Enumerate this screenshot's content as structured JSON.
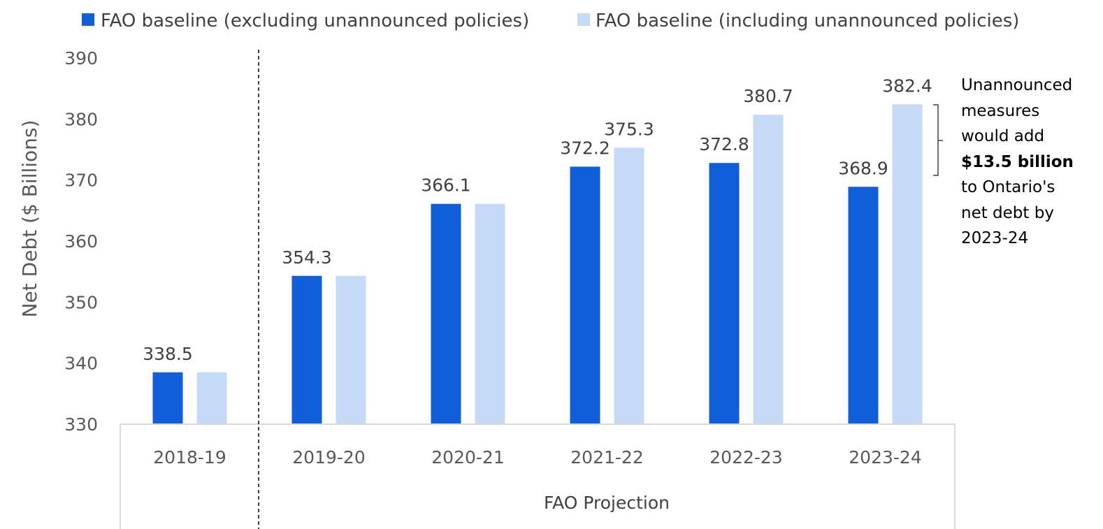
{
  "chart_data": {
    "type": "bar",
    "categories": [
      "2018-19",
      "2019-20",
      "2020-21",
      "2021-22",
      "2022-23",
      "2023-24"
    ],
    "series": [
      {
        "name": "FAO baseline (excluding unannounced policies)",
        "values": [
          338.5,
          354.3,
          366.1,
          372.2,
          372.8,
          368.9
        ],
        "labels": [
          "338.5",
          "354.3",
          "366.1",
          "372.2",
          "372.8",
          "368.9"
        ],
        "color": "#105FD8"
      },
      {
        "name": "FAO baseline (including unannounced policies)",
        "values": [
          338.5,
          354.3,
          366.1,
          375.3,
          380.7,
          382.4
        ],
        "labels": [
          "",
          "",
          "",
          "375.3",
          "380.7",
          "382.4"
        ],
        "color": "#C5DAF6"
      }
    ],
    "ylabel": "Net Debt ($ Billions)",
    "ylim": [
      330,
      390
    ],
    "yticks": [
      "330",
      "340",
      "350",
      "360",
      "370",
      "380",
      "390"
    ],
    "group_label": "FAO Projection",
    "legend_position": "top",
    "grid": false
  },
  "annotation": {
    "line1": "Unannounced",
    "line2": "measures",
    "line3": "would add",
    "bold": "$13.5 billion",
    "line5": "to Ontario's",
    "line6": "net debt by",
    "line7": "2023-24"
  }
}
